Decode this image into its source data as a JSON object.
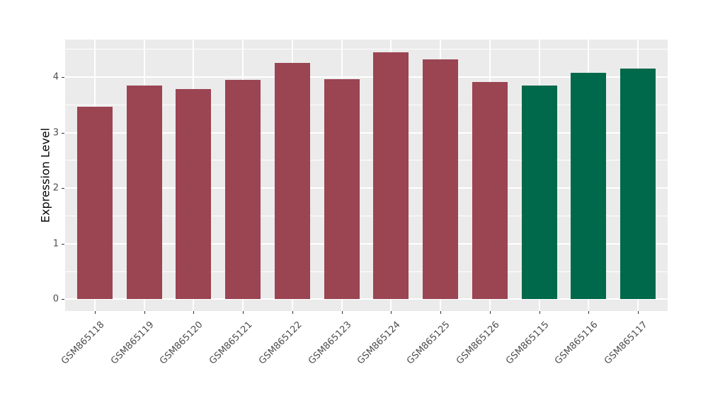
{
  "chart_data": {
    "type": "bar",
    "title": "",
    "xlabel": "",
    "ylabel": "Expression Level",
    "categories": [
      "GSM865118",
      "GSM865119",
      "GSM865120",
      "GSM865121",
      "GSM865122",
      "GSM865123",
      "GSM865124",
      "GSM865125",
      "GSM865126",
      "GSM865115",
      "GSM865116",
      "GSM865117"
    ],
    "values": [
      3.47,
      3.85,
      3.79,
      3.95,
      4.26,
      3.96,
      4.45,
      4.32,
      3.91,
      3.85,
      4.08,
      4.15
    ],
    "groups": [
      "group1",
      "group1",
      "group1",
      "group1",
      "group1",
      "group1",
      "group1",
      "group1",
      "group1",
      "group2",
      "group2",
      "group2"
    ],
    "group_colors": {
      "group1": "#9B4452",
      "group2": "#00694B"
    },
    "bar_colors": [
      "#9B4452",
      "#9B4452",
      "#9B4452",
      "#9B4452",
      "#9B4452",
      "#9B4452",
      "#9B4452",
      "#9B4452",
      "#9B4452",
      "#00694B",
      "#00694B",
      "#00694B"
    ],
    "ylim": [
      0,
      4.45
    ],
    "yticks": [
      "0",
      "1",
      "2",
      "3",
      "4"
    ],
    "minor_ticks": [
      0.5,
      1.5,
      2.5,
      3.5,
      4.5
    ],
    "grid": "on",
    "legend": "none",
    "panel_background": "#EBEBEB",
    "gridline_color": "#FFFFFF",
    "axis_text_color": "#4D4D4D",
    "x_label_rotation_deg": 45
  }
}
